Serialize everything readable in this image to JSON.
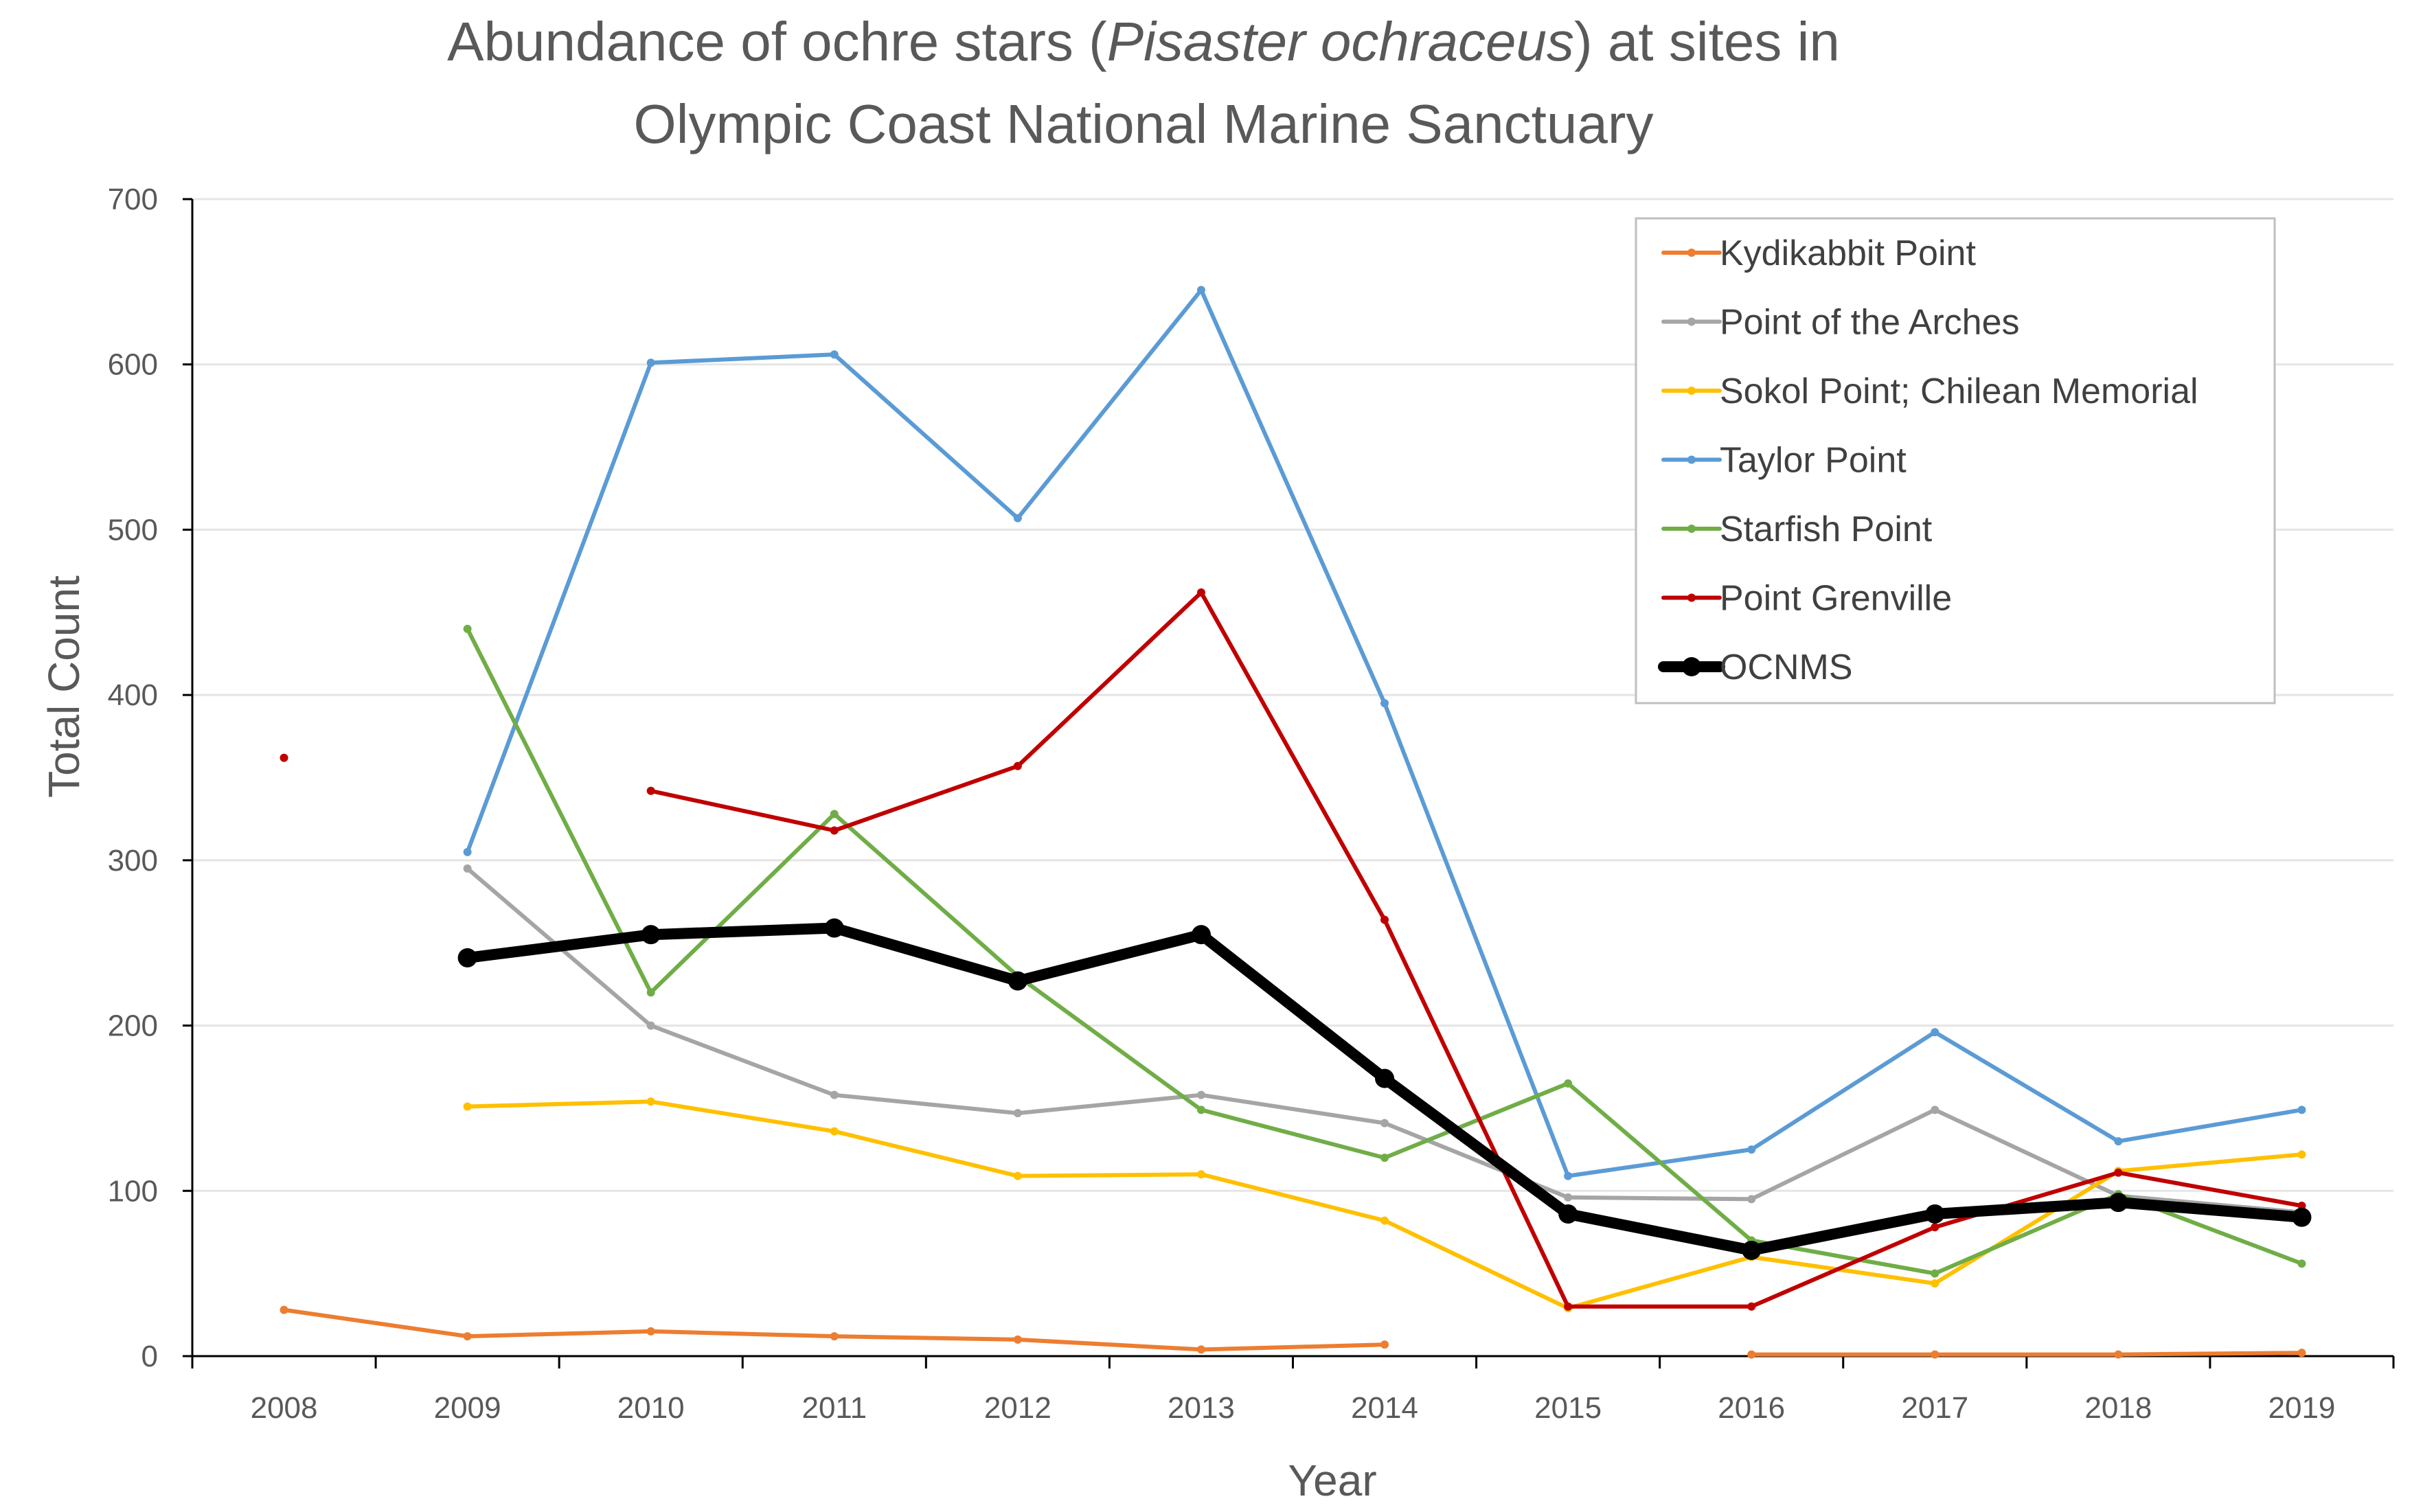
{
  "chart_data": {
    "type": "line",
    "title_line1_pre": "Abundance of ochre stars (",
    "title_line1_italic": "Pisaster ochraceus",
    "title_line1_post": ") at sites in",
    "title_line2": "Olympic Coast National Marine Sanctuary",
    "xlabel": "Year",
    "ylabel": "Total Count",
    "ylim": [
      0,
      700
    ],
    "yticks": [
      "0",
      "100",
      "200",
      "300",
      "400",
      "500",
      "600",
      "700"
    ],
    "categories": [
      "2008",
      "2009",
      "2010",
      "2011",
      "2012",
      "2013",
      "2014",
      "2015",
      "2016",
      "2017",
      "2018",
      "2019"
    ],
    "grid": "horizontal",
    "legend_position": "top-right",
    "series": [
      {
        "name": "Kydikabbit Point",
        "color": "#ED7D31",
        "width": 6,
        "marker": 6,
        "values": [
          28,
          12,
          15,
          12,
          10,
          4,
          7,
          null,
          1,
          1,
          1,
          2
        ]
      },
      {
        "name": "Point of the Arches",
        "color": "#A5A5A5",
        "width": 6,
        "marker": 6,
        "values": [
          null,
          295,
          200,
          158,
          147,
          158,
          141,
          96,
          95,
          149,
          97,
          87
        ]
      },
      {
        "name": "Sokol Point; Chilean Memorial",
        "color": "#FFC000",
        "width": 6,
        "marker": 6,
        "values": [
          null,
          151,
          154,
          136,
          109,
          110,
          82,
          29,
          60,
          44,
          112,
          122
        ]
      },
      {
        "name": "Taylor Point",
        "color": "#5B9BD5",
        "width": 6,
        "marker": 6,
        "values": [
          null,
          305,
          601,
          606,
          507,
          645,
          395,
          109,
          125,
          196,
          130,
          149
        ]
      },
      {
        "name": "Starfish Point",
        "color": "#70AD47",
        "width": 6,
        "marker": 6,
        "values": [
          null,
          440,
          220,
          328,
          230,
          149,
          120,
          165,
          70,
          50,
          98,
          56
        ]
      },
      {
        "name": "Point Grenville",
        "color": "#C00000",
        "width": 6,
        "marker": 6,
        "values": [
          362,
          null,
          342,
          318,
          357,
          462,
          264,
          30,
          30,
          78,
          111,
          91
        ]
      },
      {
        "name": "OCNMS",
        "color": "#000000",
        "width": 16,
        "marker": 14,
        "values": [
          null,
          241,
          255,
          259,
          227,
          255,
          168,
          86,
          64,
          86,
          93,
          84
        ]
      }
    ]
  }
}
